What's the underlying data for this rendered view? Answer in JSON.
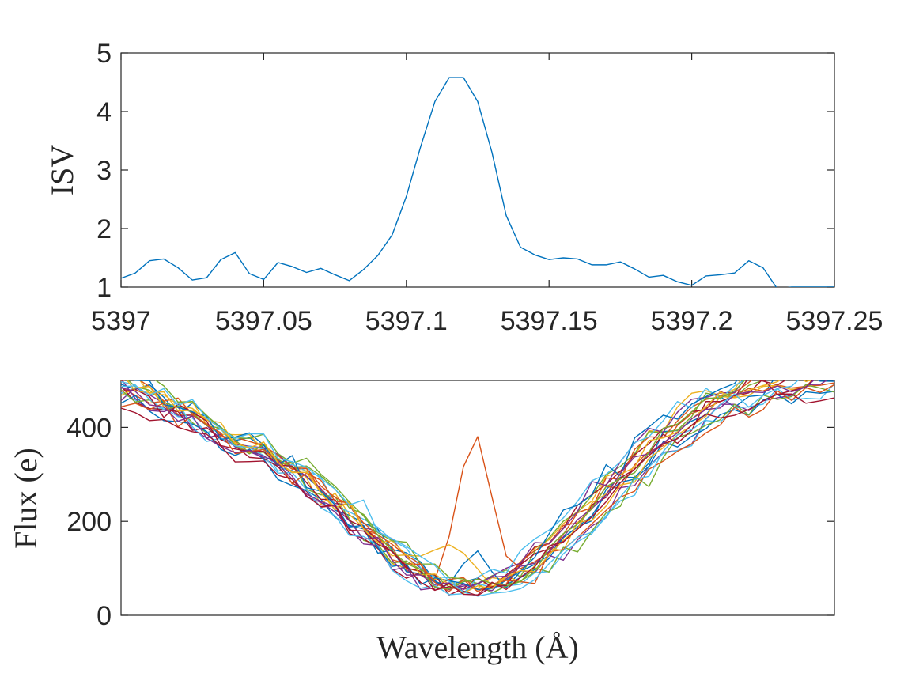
{
  "chart_data": [
    {
      "type": "line",
      "title": "",
      "xlabel": "",
      "ylabel": "ISV",
      "xlim": [
        5397,
        5397.25
      ],
      "ylim": [
        1,
        5
      ],
      "xticks": [
        5397,
        5397.05,
        5397.1,
        5397.15,
        5397.2,
        5397.25
      ],
      "xtick_labels": [
        "5397",
        "5397.05",
        "5397.1",
        "5397.15",
        "5397.2",
        "5397.25"
      ],
      "yticks": [
        1,
        2,
        3,
        4,
        5
      ],
      "ytick_labels": [
        "1",
        "2",
        "3",
        "4",
        "5"
      ],
      "grid": false,
      "series": [
        {
          "color": "#0072BD",
          "x": [
            5397.0,
            5397.005,
            5397.01,
            5397.015,
            5397.02,
            5397.025,
            5397.03,
            5397.035,
            5397.04,
            5397.045,
            5397.05,
            5397.055,
            5397.06,
            5397.065,
            5397.07,
            5397.075,
            5397.08,
            5397.085,
            5397.09,
            5397.095,
            5397.1,
            5397.105,
            5397.11,
            5397.115,
            5397.12,
            5397.125,
            5397.13,
            5397.135,
            5397.14,
            5397.145,
            5397.15,
            5397.155,
            5397.16,
            5397.165,
            5397.17,
            5397.175,
            5397.18,
            5397.185,
            5397.19,
            5397.195,
            5397.2,
            5397.205,
            5397.21,
            5397.215,
            5397.22,
            5397.225,
            5397.23,
            5397.235,
            5397.24,
            5397.245,
            5397.25
          ],
          "values": [
            1.15,
            1.24,
            1.45,
            1.48,
            1.33,
            1.12,
            1.16,
            1.47,
            1.59,
            1.23,
            1.13,
            1.42,
            1.35,
            1.25,
            1.32,
            1.21,
            1.11,
            1.3,
            1.54,
            1.89,
            2.55,
            3.4,
            4.17,
            4.58,
            4.58,
            4.17,
            3.3,
            2.22,
            1.68,
            1.55,
            1.47,
            1.5,
            1.48,
            1.38,
            1.38,
            1.43,
            1.31,
            1.17,
            1.2,
            1.09,
            1.03,
            1.19,
            1.21,
            1.24,
            1.45,
            1.33,
            0.97,
            1.0,
            1.0,
            1.0,
            1.0
          ]
        }
      ]
    },
    {
      "type": "line",
      "title": "",
      "xlabel": "Wavelength (Å)",
      "ylabel": "Flux (e)",
      "xlim": [
        5397,
        5397.25
      ],
      "ylim": [
        0,
        500
      ],
      "yticks": [
        0,
        200,
        400
      ],
      "ytick_labels": [
        "0",
        "200",
        "400"
      ],
      "grid": false,
      "base_profile": [
        {
          "x": 5397.0,
          "y": 490
        },
        {
          "x": 5397.02,
          "y": 440
        },
        {
          "x": 5397.04,
          "y": 370
        },
        {
          "x": 5397.06,
          "y": 310
        },
        {
          "x": 5397.075,
          "y": 240
        },
        {
          "x": 5397.09,
          "y": 160
        },
        {
          "x": 5397.1,
          "y": 110
        },
        {
          "x": 5397.11,
          "y": 72
        },
        {
          "x": 5397.12,
          "y": 58
        },
        {
          "x": 5397.13,
          "y": 62
        },
        {
          "x": 5397.14,
          "y": 90
        },
        {
          "x": 5397.15,
          "y": 140
        },
        {
          "x": 5397.16,
          "y": 200
        },
        {
          "x": 5397.175,
          "y": 290
        },
        {
          "x": 5397.19,
          "y": 380
        },
        {
          "x": 5397.21,
          "y": 455
        },
        {
          "x": 5397.23,
          "y": 500
        },
        {
          "x": 5397.25,
          "y": 510
        }
      ],
      "series": [
        {
          "color": "#0072BD",
          "shift": 0.002,
          "scale": 1.0,
          "seed": 1
        },
        {
          "color": "#D95319",
          "shift": 0.0,
          "scale": 1.0,
          "seed": 2,
          "bump": {
            "center": 5397.124,
            "width": 0.006,
            "peak": 385
          }
        },
        {
          "color": "#EDB120",
          "shift": -0.003,
          "scale": 1.05,
          "seed": 3
        },
        {
          "color": "#7E2F8E",
          "shift": 0.004,
          "scale": 0.97,
          "seed": 4
        },
        {
          "color": "#77AC30",
          "shift": -0.002,
          "scale": 1.02,
          "seed": 5
        },
        {
          "color": "#4DBEEE",
          "shift": 0.005,
          "scale": 0.95,
          "seed": 6
        },
        {
          "color": "#A2142F",
          "shift": -0.004,
          "scale": 1.0,
          "seed": 7
        },
        {
          "color": "#0072BD",
          "shift": 0.001,
          "scale": 0.93,
          "seed": 8,
          "bump": {
            "center": 5397.124,
            "width": 0.004,
            "peak": 140
          }
        },
        {
          "color": "#D95319",
          "shift": -0.001,
          "scale": 1.04,
          "seed": 9
        },
        {
          "color": "#EDB120",
          "shift": 0.003,
          "scale": 0.99,
          "seed": 10,
          "bump": {
            "center": 5397.115,
            "width": 0.008,
            "peak": 150
          }
        },
        {
          "color": "#7E2F8E",
          "shift": -0.005,
          "scale": 1.01,
          "seed": 11
        },
        {
          "color": "#77AC30",
          "shift": 0.006,
          "scale": 0.96,
          "seed": 12
        },
        {
          "color": "#4DBEEE",
          "shift": -0.006,
          "scale": 1.03,
          "seed": 13
        },
        {
          "color": "#A2142F",
          "shift": 0.0,
          "scale": 0.98,
          "seed": 14
        },
        {
          "color": "#0072BD",
          "shift": -0.003,
          "scale": 1.06,
          "seed": 15
        },
        {
          "color": "#D95319",
          "shift": 0.004,
          "scale": 0.94,
          "seed": 16
        },
        {
          "color": "#EDB120",
          "shift": 0.001,
          "scale": 1.02,
          "seed": 17
        },
        {
          "color": "#7E2F8E",
          "shift": -0.002,
          "scale": 0.97,
          "seed": 18
        },
        {
          "color": "#77AC30",
          "shift": 0.002,
          "scale": 1.05,
          "seed": 19
        },
        {
          "color": "#4DBEEE",
          "shift": 0.007,
          "scale": 1.0,
          "seed": 20
        },
        {
          "color": "#A2142F",
          "shift": -0.001,
          "scale": 0.92,
          "seed": 21
        }
      ]
    }
  ]
}
